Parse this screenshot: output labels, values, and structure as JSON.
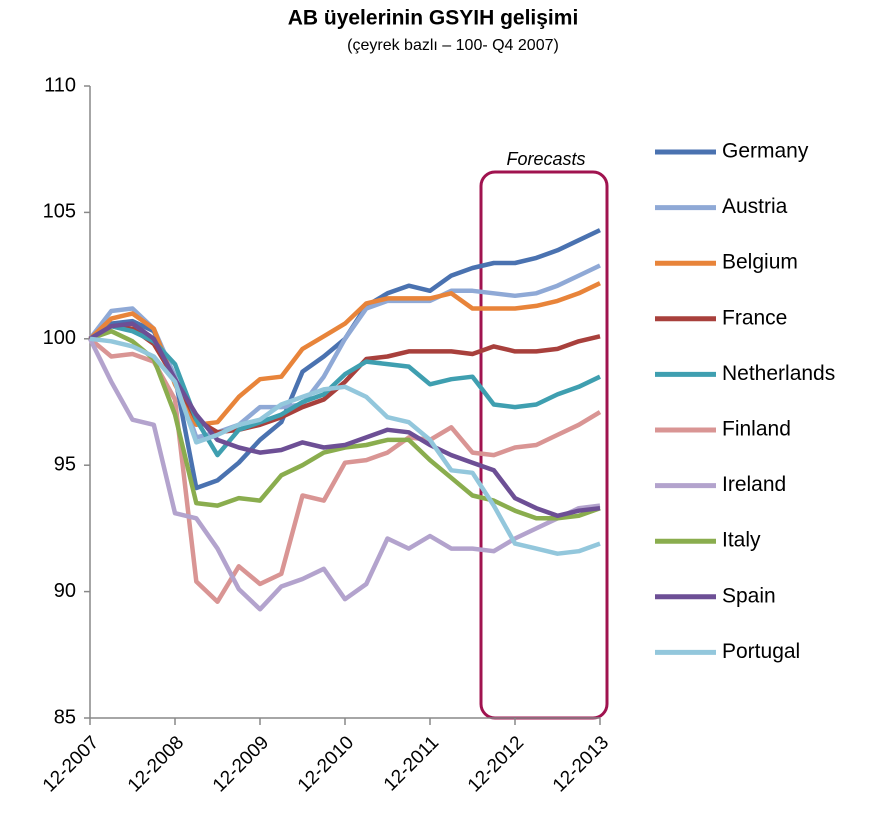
{
  "chart_data": {
    "type": "line",
    "title": "AB üyelerinin GSYIH gelişimi",
    "subtitle": "(çeyrek bazlı – 100- Q4 2007)",
    "annotations": [
      "Forecasts"
    ],
    "categories": [
      "12-2007",
      null,
      null,
      null,
      "12-2008",
      null,
      null,
      null,
      "12-2009",
      null,
      null,
      null,
      "12-2010",
      null,
      null,
      null,
      "12-2011",
      null,
      null,
      null,
      "12-2012",
      null,
      null,
      null,
      "12-2013"
    ],
    "ylim": [
      85,
      110
    ],
    "yticks": [
      85,
      90,
      95,
      100,
      105,
      110
    ],
    "grid": false,
    "legend": "right",
    "series": [
      {
        "name": "Germany",
        "color": "#4a72b0",
        "values": [
          100,
          100.6,
          100.7,
          100.3,
          98.5,
          94.1,
          94.4,
          95.1,
          96.0,
          96.7,
          98.7,
          99.3,
          100.0,
          101.3,
          101.8,
          102.1,
          101.9,
          102.5,
          102.8,
          103.0,
          103.0,
          103.2,
          103.5,
          103.9,
          104.3
        ]
      },
      {
        "name": "Austria",
        "color": "#8fa9d6",
        "values": [
          100,
          101.1,
          101.2,
          100.4,
          98.5,
          96.1,
          96.3,
          96.6,
          97.3,
          97.3,
          97.4,
          98.5,
          100.0,
          101.2,
          101.5,
          101.5,
          101.5,
          101.9,
          101.9,
          101.8,
          101.7,
          101.8,
          102.1,
          102.5,
          102.9
        ]
      },
      {
        "name": "Belgium",
        "color": "#e8843a",
        "values": [
          100,
          100.8,
          101.0,
          100.4,
          98.2,
          96.6,
          96.7,
          97.7,
          98.4,
          98.5,
          99.6,
          100.1,
          100.6,
          101.4,
          101.6,
          101.6,
          101.6,
          101.8,
          101.2,
          101.2,
          101.2,
          101.3,
          101.5,
          101.8,
          102.2
        ]
      },
      {
        "name": "France",
        "color": "#a8403c",
        "values": [
          100,
          100.5,
          100.4,
          99.8,
          98.4,
          96.8,
          96.3,
          96.4,
          96.6,
          96.9,
          97.3,
          97.6,
          98.3,
          99.2,
          99.3,
          99.5,
          99.5,
          99.5,
          99.4,
          99.7,
          99.5,
          99.5,
          99.6,
          99.9,
          100.1
        ]
      },
      {
        "name": "Netherlands",
        "color": "#3f9fb0",
        "values": [
          100,
          100.5,
          100.3,
          99.9,
          99.0,
          96.8,
          95.4,
          96.4,
          96.7,
          97.0,
          97.5,
          97.8,
          98.6,
          99.1,
          99.0,
          98.9,
          98.2,
          98.4,
          98.5,
          97.4,
          97.3,
          97.4,
          97.8,
          98.1,
          98.5
        ]
      },
      {
        "name": "Finland",
        "color": "#d99594",
        "values": [
          100,
          99.3,
          99.4,
          99.1,
          97.6,
          90.4,
          89.6,
          91.0,
          90.3,
          90.7,
          93.8,
          93.6,
          95.1,
          95.2,
          95.5,
          96.1,
          96.0,
          96.5,
          95.5,
          95.4,
          95.7,
          95.8,
          96.2,
          96.6,
          97.1
        ]
      },
      {
        "name": "Ireland",
        "color": "#b3a3cd",
        "values": [
          100,
          98.3,
          96.8,
          96.6,
          93.1,
          92.9,
          91.7,
          90.1,
          89.3,
          90.2,
          90.5,
          90.9,
          89.7,
          90.3,
          92.1,
          91.7,
          92.2,
          91.7,
          91.7,
          91.6,
          92.1,
          92.5,
          92.9,
          93.3,
          93.4
        ]
      },
      {
        "name": "Italy",
        "color": "#8aad4e",
        "values": [
          100,
          100.3,
          99.9,
          99.2,
          97.0,
          93.5,
          93.4,
          93.7,
          93.6,
          94.6,
          95.0,
          95.5,
          95.7,
          95.8,
          96.0,
          96.0,
          95.2,
          94.5,
          93.8,
          93.6,
          93.2,
          92.9,
          92.9,
          93.0,
          93.3
        ]
      },
      {
        "name": "Spain",
        "color": "#6d4f95",
        "values": [
          100,
          100.5,
          100.6,
          100.0,
          98.4,
          97.0,
          96.0,
          95.7,
          95.5,
          95.6,
          95.9,
          95.7,
          95.8,
          96.1,
          96.4,
          96.3,
          95.8,
          95.4,
          95.1,
          94.8,
          93.7,
          93.3,
          93.0,
          93.2,
          93.3
        ]
      },
      {
        "name": "Portugal",
        "color": "#93c7dc",
        "values": [
          100,
          99.9,
          99.7,
          99.3,
          98.3,
          95.9,
          96.2,
          96.6,
          96.8,
          97.4,
          97.7,
          98.0,
          98.1,
          97.7,
          96.9,
          96.7,
          96.0,
          94.8,
          94.7,
          93.4,
          91.9,
          91.7,
          91.5,
          91.6,
          91.9
        ]
      }
    ]
  }
}
